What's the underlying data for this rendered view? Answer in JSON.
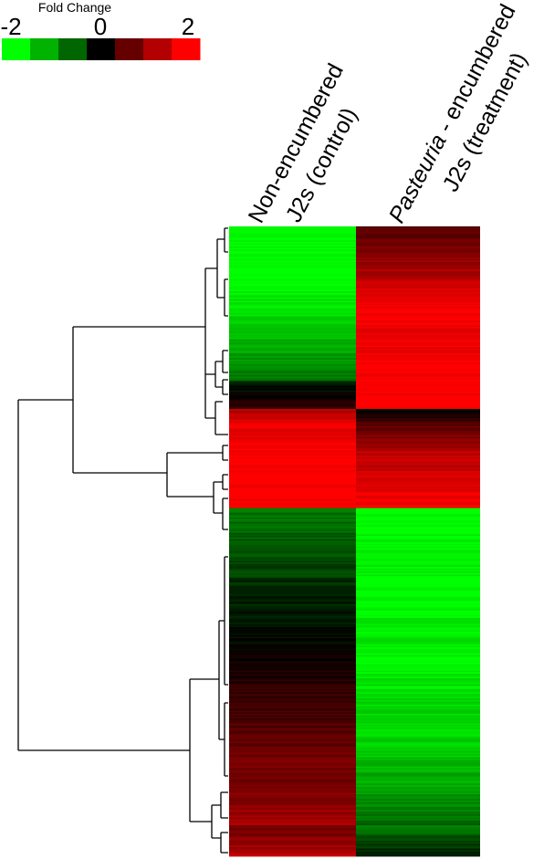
{
  "chart_data": {
    "type": "heatmap",
    "legend": {
      "title": "Fold Change",
      "min_label": "-2",
      "mid_label": "0",
      "max_label": "2",
      "scale_values": [
        -2,
        -1.33,
        -0.67,
        0,
        0.67,
        1.33,
        2
      ],
      "scale_colors": [
        "#00ff00",
        "#00b300",
        "#006600",
        "#000000",
        "#660000",
        "#b30000",
        "#ff0000"
      ],
      "placement": "top-left"
    },
    "columns": [
      {
        "line1": "Non-encumbered",
        "line2": "J2s (control)"
      },
      {
        "line1_italic": "Pasteuria",
        "line1_rest": " - encumbered",
        "line2": "J2s (treatment)"
      }
    ],
    "row_blocks": [
      {
        "rows": 36,
        "control": [
          -2.0,
          -2.0
        ],
        "treatment": [
          0.6,
          1.5
        ]
      },
      {
        "rows": 28,
        "control": [
          -2.0,
          -1.6
        ],
        "treatment": [
          1.6,
          2.0
        ]
      },
      {
        "rows": 36,
        "control": [
          -1.6,
          -0.9
        ],
        "treatment": [
          1.8,
          2.0
        ]
      },
      {
        "rows": 18,
        "control": [
          -0.3,
          0.4
        ],
        "treatment": [
          2.0,
          2.0
        ]
      },
      {
        "rows": 12,
        "control": [
          1.4,
          1.9
        ],
        "treatment": [
          -0.2,
          0.8
        ]
      },
      {
        "rows": 22,
        "control": [
          1.8,
          2.0
        ],
        "treatment": [
          0.8,
          1.6
        ]
      },
      {
        "rows": 30,
        "control": [
          2.0,
          2.0
        ],
        "treatment": [
          1.5,
          2.0
        ]
      },
      {
        "rows": 45,
        "control": [
          -0.9,
          -0.5
        ],
        "treatment": [
          -2.0,
          -1.9
        ]
      },
      {
        "rows": 45,
        "control": [
          -0.4,
          0.0
        ],
        "treatment": [
          -2.0,
          -1.8
        ]
      },
      {
        "rows": 50,
        "control": [
          0.0,
          0.6
        ],
        "treatment": [
          -2.0,
          -1.6
        ]
      },
      {
        "rows": 35,
        "control": [
          0.6,
          1.0
        ],
        "treatment": [
          -1.8,
          -1.3
        ]
      },
      {
        "rows": 30,
        "control": [
          0.9,
          1.3
        ],
        "treatment": [
          -1.4,
          -0.8
        ]
      },
      {
        "rows": 20,
        "control": [
          0.9,
          1.4
        ],
        "treatment": [
          -0.9,
          -0.2
        ]
      }
    ]
  }
}
